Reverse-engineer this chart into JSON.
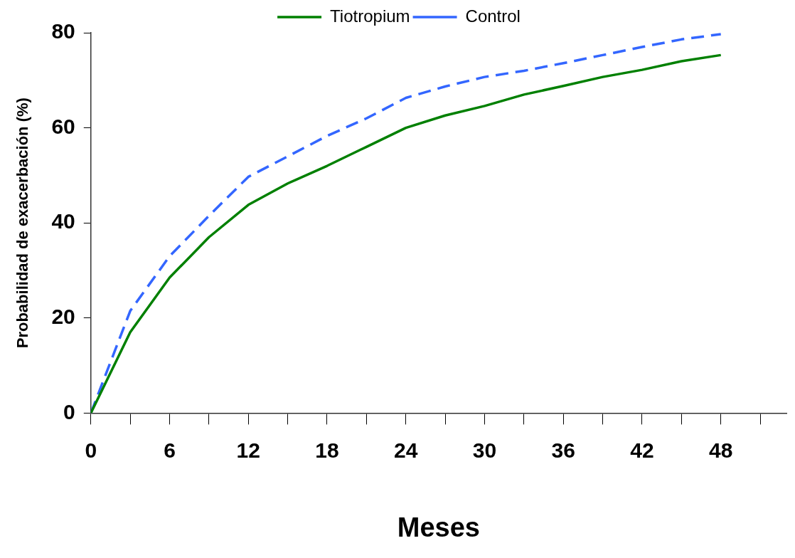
{
  "chart_data": {
    "type": "line",
    "xlabel": "Meses",
    "ylabel": "Probabilidad de exacerbación (%)",
    "x": [
      0,
      3,
      6,
      9,
      12,
      15,
      18,
      21,
      24,
      27,
      30,
      33,
      36,
      39,
      42,
      45,
      48
    ],
    "series": [
      {
        "name": "Tiotropium",
        "color": "#008000",
        "line_style": "solid",
        "values": [
          0,
          17,
          28.5,
          37,
          43.8,
          48.3,
          52,
          56,
          60,
          62.6,
          64.6,
          67,
          68.8,
          70.7,
          72.2,
          74,
          75.3
        ]
      },
      {
        "name": "Control",
        "color": "#3366ff",
        "line_style": "dashed",
        "values": [
          0,
          21.5,
          33,
          41.5,
          49.7,
          54,
          58.3,
          62,
          66.3,
          68.7,
          70.7,
          72,
          73.6,
          75.3,
          77,
          78.6,
          79.7
        ]
      }
    ],
    "xlim": [
      0,
      53
    ],
    "xticks": [
      0,
      {
        "value": 3,
        "label": null
      },
      6,
      {
        "value": 9,
        "label": null
      },
      12,
      {
        "value": 15,
        "label": null
      },
      18,
      {
        "value": 21,
        "label": null
      },
      24,
      {
        "value": 27,
        "label": null
      },
      30,
      {
        "value": 33,
        "label": null
      },
      36,
      {
        "value": 39,
        "label": null
      },
      42,
      {
        "value": 45,
        "label": null
      },
      48,
      {
        "value": 51,
        "label": null
      }
    ],
    "ylim": [
      0,
      80
    ],
    "yticks": [
      0,
      20,
      40,
      60,
      80
    ],
    "grid": false,
    "legend": "top",
    "marker": "none"
  }
}
